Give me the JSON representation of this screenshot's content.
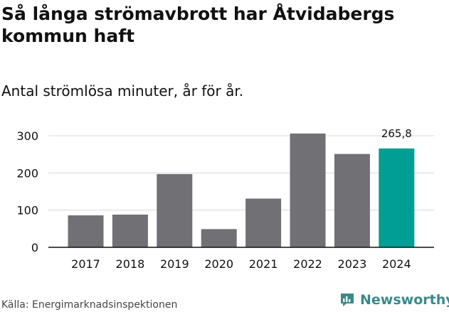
{
  "title": "Så långa strömavbrott har Åtvidabergs kommun haft",
  "subtitle": "Antal strömlösa minuter, år för år.",
  "source": "Källa: Energimarknadsinspektionen",
  "brand": "Newsworthy",
  "colors": {
    "bar": "#717075",
    "highlight": "#009e94",
    "grid": "#d9d9d9",
    "axis": "#111111",
    "brand": "#3a8a8c"
  },
  "chart_data": {
    "type": "bar",
    "categories": [
      "2017",
      "2018",
      "2019",
      "2020",
      "2021",
      "2022",
      "2023",
      "2024"
    ],
    "values": [
      86,
      88,
      197,
      49,
      131,
      306,
      251,
      265.8
    ],
    "highlight_index": 7,
    "data_labels": [
      "",
      "",
      "",
      "",
      "",
      "",
      "",
      "265,8"
    ],
    "title": "Så långa strömavbrott har Åtvidabergs kommun haft",
    "xlabel": "",
    "ylabel": "",
    "ylim": [
      0,
      300
    ],
    "yticks": [
      0,
      100,
      200,
      300
    ],
    "grid": true
  }
}
